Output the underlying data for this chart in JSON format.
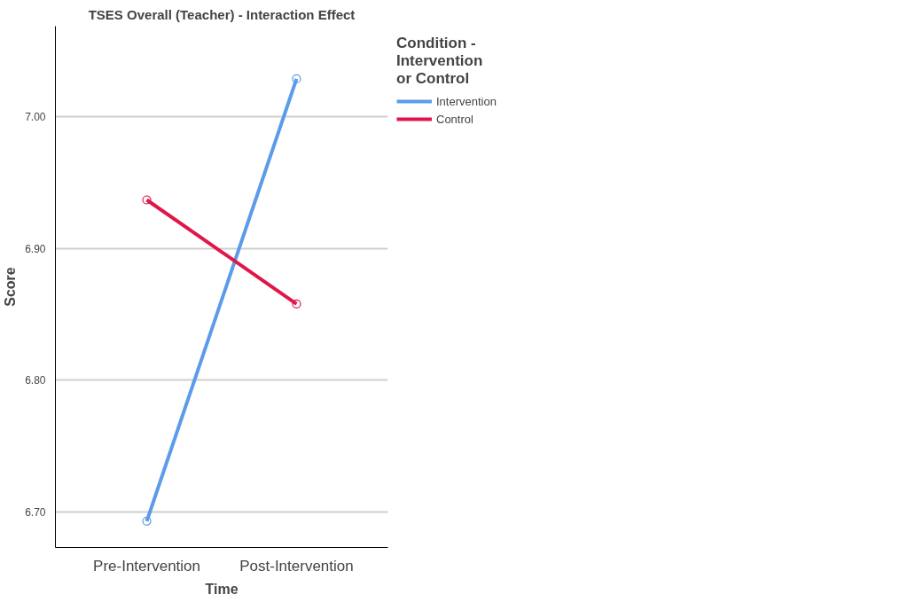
{
  "chart_data": {
    "type": "line",
    "title": "TSES Overall (Teacher) - Interaction Effect",
    "xlabel": "Time",
    "ylabel": "Score",
    "legend_title": "Condition - Intervention or Control",
    "categories": [
      "Pre-Intervention",
      "Post-Intervention"
    ],
    "series": [
      {
        "name": "Intervention",
        "color": "#5b9bea",
        "values": [
          6.693,
          7.029
        ]
      },
      {
        "name": "Control",
        "color": "#e0164a",
        "values": [
          6.937,
          6.858
        ]
      }
    ],
    "ylim": [
      6.673,
      7.069
    ],
    "yticks": [
      {
        "value": 6.7,
        "label": "6.70"
      },
      {
        "value": 6.8,
        "label": "6.80"
      },
      {
        "value": 6.9,
        "label": "6.90"
      },
      {
        "value": 7.0,
        "label": "7.00"
      }
    ],
    "grid": "y",
    "legend": "right",
    "marker": "circle",
    "line_style": "solid"
  }
}
